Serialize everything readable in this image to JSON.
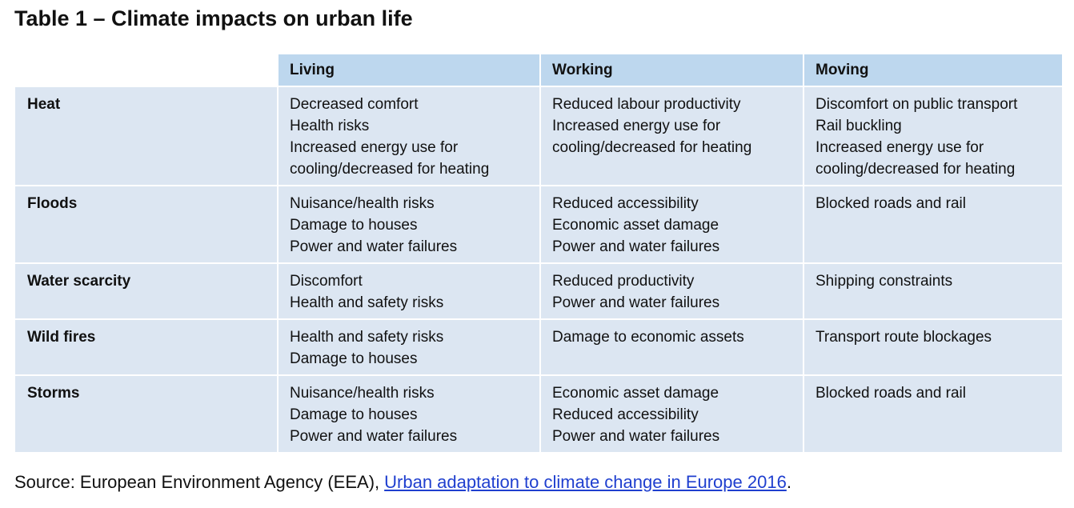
{
  "header": {
    "title": "Table 1 – Climate impacts on urban life"
  },
  "table": {
    "columns": [
      "Living",
      "Working",
      "Moving"
    ],
    "rows": [
      {
        "label": "Heat",
        "cells": [
          [
            "Decreased comfort",
            "Health risks",
            "Increased energy use for",
            "cooling/decreased for heating"
          ],
          [
            "Reduced labour productivity",
            "Increased energy use for",
            "cooling/decreased for heating"
          ],
          [
            "Discomfort on public transport",
            "Rail buckling",
            "Increased energy use for",
            "cooling/decreased for heating"
          ]
        ]
      },
      {
        "label": "Floods",
        "cells": [
          [
            "Nuisance/health risks",
            "Damage to houses",
            "Power and water failures"
          ],
          [
            "Reduced accessibility",
            "Economic asset damage",
            "Power and water failures"
          ],
          [
            "Blocked roads and rail"
          ]
        ]
      },
      {
        "label": "Water scarcity",
        "cells": [
          [
            "Discomfort",
            "Health and safety risks"
          ],
          [
            "Reduced productivity",
            "Power and water failures"
          ],
          [
            "Shipping constraints"
          ]
        ]
      },
      {
        "label": "Wild fires",
        "cells": [
          [
            "Health and safety risks",
            "Damage to houses"
          ],
          [
            "Damage to economic assets"
          ],
          [
            "Transport route blockages"
          ]
        ]
      },
      {
        "label": "Storms",
        "cells": [
          [
            "Nuisance/health risks",
            "Damage to houses",
            "Power and water failures"
          ],
          [
            "Economic asset damage",
            "Reduced accessibility",
            "Power and water failures"
          ],
          [
            "Blocked roads and rail"
          ]
        ]
      }
    ]
  },
  "source": {
    "text": "Source: European Environment Agency (EEA),",
    "link": "Urban adaptation to climate change in Europe 2016",
    "end": "."
  }
}
